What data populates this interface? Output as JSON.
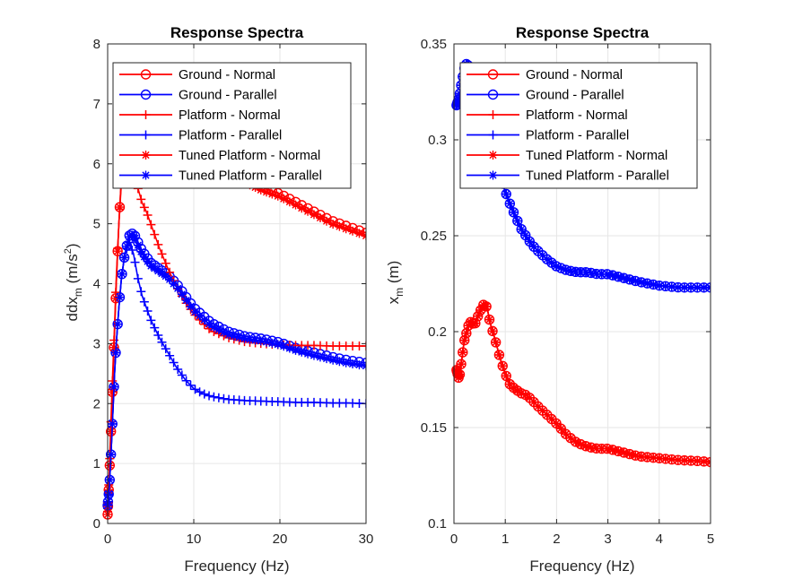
{
  "chart_data": [
    {
      "type": "line",
      "title": "Response Spectra",
      "xlabel": "Frequency (Hz)",
      "ylabel_main": "ddx",
      "ylabel_sub": "m",
      "ylabel_unit_pre": " (m/s",
      "ylabel_unit_sup": "2",
      "ylabel_unit_post": ")",
      "xlim": [
        0,
        30
      ],
      "ylim": [
        0,
        8
      ],
      "xticks": [
        0,
        10,
        20,
        30
      ],
      "yticks": [
        0,
        1,
        2,
        3,
        4,
        5,
        6,
        7,
        8
      ],
      "grid": true,
      "legend_position": "top-left",
      "series": [
        {
          "name": "Ground - Normal",
          "color": "#ff0000",
          "marker": "circle",
          "x": [
            0,
            0.2,
            0.5,
            0.8,
            1.0,
            1.3,
            1.6,
            2.0,
            2.5,
            3.0,
            3.5,
            4.0,
            5.0,
            6.0,
            8.0,
            10.0,
            12.0,
            15.0,
            18.0,
            20.0,
            22.0,
            24.0,
            26.0,
            28.0,
            30.0
          ],
          "y": [
            0.15,
            0.8,
            2.0,
            3.2,
            4.0,
            5.0,
            5.8,
            6.6,
            7.0,
            7.1,
            7.0,
            6.9,
            6.7,
            6.5,
            6.3,
            6.1,
            5.95,
            5.8,
            5.6,
            5.5,
            5.35,
            5.2,
            5.05,
            4.95,
            4.85
          ]
        },
        {
          "name": "Ground - Parallel",
          "color": "#0000ff",
          "marker": "circle",
          "x": [
            0,
            0.2,
            0.5,
            0.8,
            1.0,
            1.3,
            1.6,
            2.0,
            2.5,
            3.0,
            3.5,
            4.0,
            5.0,
            6.0,
            7.0,
            8.0,
            9.0,
            10.0,
            12.0,
            14.0,
            16.0,
            18.0,
            20.0,
            22.0,
            24.0,
            26.0,
            28.0,
            30.0
          ],
          "y": [
            0.3,
            0.6,
            1.5,
            2.5,
            3.0,
            3.6,
            4.1,
            4.5,
            4.8,
            4.85,
            4.7,
            4.55,
            4.35,
            4.25,
            4.15,
            4.0,
            3.8,
            3.6,
            3.35,
            3.2,
            3.12,
            3.08,
            3.02,
            2.92,
            2.85,
            2.78,
            2.72,
            2.68
          ]
        },
        {
          "name": "Platform - Normal",
          "color": "#ff0000",
          "marker": "plus",
          "x": [
            0,
            0.2,
            0.5,
            0.8,
            1.0,
            1.3,
            1.6,
            2.0,
            2.5,
            3.0,
            3.5,
            4.0,
            4.5,
            5.0,
            6.0,
            7.0,
            8.0,
            9.0,
            10.0,
            11.0,
            12.0,
            14.0,
            16.0,
            18.0,
            20.0,
            22.0,
            24.0,
            26.0,
            28.0,
            30.0
          ],
          "y": [
            0.2,
            0.9,
            2.2,
            3.3,
            4.1,
            5.0,
            5.7,
            6.2,
            6.3,
            6.0,
            5.6,
            5.35,
            5.2,
            5.0,
            4.6,
            4.25,
            3.95,
            3.7,
            3.5,
            3.35,
            3.22,
            3.1,
            3.03,
            3.0,
            2.98,
            2.97,
            2.97,
            2.96,
            2.96,
            2.96
          ]
        },
        {
          "name": "Platform - Parallel",
          "color": "#0000ff",
          "marker": "plus",
          "x": [
            0,
            0.2,
            0.5,
            0.8,
            1.0,
            1.3,
            1.6,
            2.0,
            2.5,
            3.0,
            3.5,
            4.0,
            4.5,
            5.0,
            6.0,
            7.0,
            8.0,
            9.0,
            10.0,
            11.0,
            12.0,
            14.0,
            16.0,
            18.0,
            20.0,
            22.0,
            24.0,
            26.0,
            28.0,
            30.0
          ],
          "y": [
            0.25,
            0.6,
            1.5,
            2.5,
            3.0,
            3.6,
            4.1,
            4.5,
            4.7,
            4.5,
            4.1,
            3.8,
            3.6,
            3.4,
            3.1,
            2.85,
            2.6,
            2.4,
            2.25,
            2.17,
            2.12,
            2.07,
            2.05,
            2.04,
            2.03,
            2.02,
            2.02,
            2.01,
            2.01,
            2.0
          ]
        },
        {
          "name": "Tuned Platform - Normal",
          "color": "#ff0000",
          "marker": "star",
          "x": [
            0,
            0.2,
            0.5,
            0.8,
            1.0,
            1.3,
            1.6,
            2.0,
            2.5,
            3.0,
            3.5,
            4.0,
            5.0,
            6.0,
            8.0,
            10.0,
            12.0,
            15.0,
            18.0,
            20.0,
            22.0,
            24.0,
            26.0,
            28.0,
            30.0
          ],
          "y": [
            0.15,
            0.8,
            2.0,
            3.2,
            4.0,
            5.0,
            5.8,
            6.5,
            6.95,
            7.05,
            6.95,
            6.85,
            6.65,
            6.45,
            6.25,
            6.05,
            5.9,
            5.75,
            5.55,
            5.45,
            5.3,
            5.15,
            5.0,
            4.9,
            4.8
          ]
        },
        {
          "name": "Tuned Platform - Parallel",
          "color": "#0000ff",
          "marker": "star",
          "x": [
            0,
            0.2,
            0.5,
            0.8,
            1.0,
            1.3,
            1.6,
            2.0,
            2.5,
            3.0,
            3.5,
            4.0,
            5.0,
            6.0,
            7.0,
            8.0,
            9.0,
            10.0,
            12.0,
            14.0,
            16.0,
            18.0,
            20.0,
            22.0,
            24.0,
            26.0,
            28.0,
            30.0
          ],
          "y": [
            0.3,
            0.6,
            1.5,
            2.5,
            3.0,
            3.6,
            4.1,
            4.5,
            4.78,
            4.82,
            4.65,
            4.5,
            4.3,
            4.2,
            4.1,
            3.95,
            3.75,
            3.55,
            3.3,
            3.15,
            3.08,
            3.04,
            2.98,
            2.88,
            2.8,
            2.73,
            2.67,
            2.63
          ]
        }
      ]
    },
    {
      "type": "line",
      "title": "Response Spectra",
      "xlabel": "Frequency (Hz)",
      "ylabel_main": "x",
      "ylabel_sub": "m",
      "ylabel_unit_pre": " (m)",
      "ylabel_unit_sup": "",
      "ylabel_unit_post": "",
      "xlim": [
        0,
        5
      ],
      "ylim": [
        0.1,
        0.35
      ],
      "xticks": [
        0,
        1,
        2,
        3,
        4,
        5
      ],
      "yticks": [
        0.1,
        0.15,
        0.2,
        0.25,
        0.3,
        0.35
      ],
      "grid": true,
      "legend_position": "top-right",
      "series": [
        {
          "name": "Ground - Normal",
          "color": "#ff0000",
          "marker": "circle",
          "x": [
            0.05,
            0.1,
            0.15,
            0.2,
            0.25,
            0.3,
            0.35,
            0.4,
            0.45,
            0.5,
            0.55,
            0.6,
            0.65,
            0.7,
            0.8,
            0.9,
            1.0,
            1.1,
            1.2,
            1.3,
            1.4,
            1.5,
            1.6,
            1.8,
            2.0,
            2.2,
            2.4,
            2.6,
            2.8,
            3.0,
            3.3,
            3.6,
            4.0,
            4.4,
            4.8,
            5.0
          ],
          "y": [
            0.18,
            0.175,
            0.185,
            0.195,
            0.2,
            0.205,
            0.205,
            0.203,
            0.207,
            0.21,
            0.213,
            0.215,
            0.212,
            0.205,
            0.196,
            0.186,
            0.178,
            0.172,
            0.17,
            0.168,
            0.167,
            0.165,
            0.162,
            0.157,
            0.152,
            0.146,
            0.142,
            0.14,
            0.139,
            0.139,
            0.137,
            0.135,
            0.134,
            0.133,
            0.1325,
            0.132
          ]
        },
        {
          "name": "Ground - Parallel",
          "color": "#0000ff",
          "marker": "circle",
          "x": [
            0.05,
            0.1,
            0.15,
            0.2,
            0.25,
            0.3,
            0.35,
            0.4,
            0.5,
            0.6,
            0.7,
            0.8,
            0.9,
            1.0,
            1.1,
            1.2,
            1.3,
            1.4,
            1.5,
            1.6,
            1.8,
            2.0,
            2.2,
            2.4,
            2.6,
            2.8,
            3.0,
            3.3,
            3.6,
            4.0,
            4.4,
            4.8,
            5.0
          ],
          "y": [
            0.318,
            0.322,
            0.33,
            0.337,
            0.34,
            0.338,
            0.33,
            0.325,
            0.318,
            0.31,
            0.3,
            0.29,
            0.281,
            0.273,
            0.266,
            0.26,
            0.254,
            0.25,
            0.246,
            0.243,
            0.238,
            0.234,
            0.232,
            0.231,
            0.231,
            0.23,
            0.23,
            0.228,
            0.226,
            0.224,
            0.223,
            0.223,
            0.223
          ]
        },
        {
          "name": "Platform - Normal",
          "color": "#ff0000",
          "marker": "plus",
          "x": [
            0.05,
            0.1,
            0.15,
            0.2,
            0.25,
            0.3,
            0.35,
            0.4,
            0.45,
            0.5,
            0.55,
            0.6,
            0.65,
            0.7,
            0.8,
            0.9,
            1.0,
            1.1,
            1.2,
            1.3,
            1.4,
            1.5,
            1.6,
            1.8,
            2.0,
            2.2,
            2.4,
            2.6,
            2.8,
            3.0,
            3.3,
            3.6,
            4.0,
            4.4,
            4.8,
            5.0
          ],
          "y": [
            0.18,
            0.175,
            0.185,
            0.195,
            0.2,
            0.205,
            0.205,
            0.203,
            0.207,
            0.21,
            0.213,
            0.215,
            0.212,
            0.205,
            0.196,
            0.186,
            0.178,
            0.172,
            0.17,
            0.168,
            0.167,
            0.165,
            0.162,
            0.157,
            0.152,
            0.146,
            0.142,
            0.14,
            0.139,
            0.139,
            0.137,
            0.135,
            0.134,
            0.133,
            0.1325,
            0.132
          ]
        },
        {
          "name": "Platform - Parallel",
          "color": "#0000ff",
          "marker": "plus",
          "x": [
            0.05,
            0.1,
            0.15,
            0.2,
            0.25,
            0.3,
            0.35,
            0.4,
            0.5,
            0.6,
            0.7,
            0.8,
            0.9,
            1.0,
            1.1,
            1.2,
            1.3,
            1.4,
            1.5,
            1.6,
            1.8,
            2.0,
            2.2,
            2.4,
            2.6,
            2.8,
            3.0,
            3.3,
            3.6,
            4.0,
            4.4,
            4.8,
            5.0
          ],
          "y": [
            0.318,
            0.322,
            0.33,
            0.337,
            0.34,
            0.338,
            0.33,
            0.325,
            0.318,
            0.31,
            0.3,
            0.29,
            0.281,
            0.273,
            0.266,
            0.26,
            0.254,
            0.25,
            0.246,
            0.243,
            0.238,
            0.234,
            0.232,
            0.231,
            0.231,
            0.23,
            0.23,
            0.228,
            0.226,
            0.224,
            0.223,
            0.223,
            0.223
          ]
        },
        {
          "name": "Tuned Platform - Normal",
          "color": "#ff0000",
          "marker": "star",
          "x": [
            0.05,
            0.1,
            0.15,
            0.2,
            0.25,
            0.3,
            0.35,
            0.4,
            0.45,
            0.5,
            0.55,
            0.6,
            0.65,
            0.7,
            0.8,
            0.9,
            1.0,
            1.1,
            1.2,
            1.3,
            1.4,
            1.5,
            1.6,
            1.8,
            2.0,
            2.2,
            2.4,
            2.6,
            2.8,
            3.0,
            3.3,
            3.6,
            4.0,
            4.4,
            4.8,
            5.0
          ],
          "y": [
            0.18,
            0.175,
            0.185,
            0.195,
            0.2,
            0.205,
            0.205,
            0.203,
            0.207,
            0.21,
            0.213,
            0.215,
            0.212,
            0.205,
            0.196,
            0.186,
            0.178,
            0.172,
            0.17,
            0.168,
            0.167,
            0.165,
            0.162,
            0.157,
            0.152,
            0.146,
            0.142,
            0.14,
            0.139,
            0.139,
            0.137,
            0.135,
            0.134,
            0.133,
            0.1325,
            0.132
          ]
        },
        {
          "name": "Tuned Platform - Parallel",
          "color": "#0000ff",
          "marker": "star",
          "x": [
            0.05,
            0.1,
            0.15,
            0.2,
            0.25,
            0.3,
            0.35,
            0.4,
            0.5,
            0.6,
            0.7,
            0.8,
            0.9,
            1.0,
            1.1,
            1.2,
            1.3,
            1.4,
            1.5,
            1.6,
            1.8,
            2.0,
            2.2,
            2.4,
            2.6,
            2.8,
            3.0,
            3.3,
            3.6,
            4.0,
            4.4,
            4.8,
            5.0
          ],
          "y": [
            0.318,
            0.322,
            0.33,
            0.337,
            0.34,
            0.338,
            0.33,
            0.325,
            0.318,
            0.31,
            0.3,
            0.29,
            0.281,
            0.273,
            0.266,
            0.26,
            0.254,
            0.25,
            0.246,
            0.243,
            0.238,
            0.234,
            0.232,
            0.231,
            0.231,
            0.23,
            0.23,
            0.228,
            0.226,
            0.224,
            0.223,
            0.223,
            0.223
          ]
        }
      ]
    }
  ]
}
